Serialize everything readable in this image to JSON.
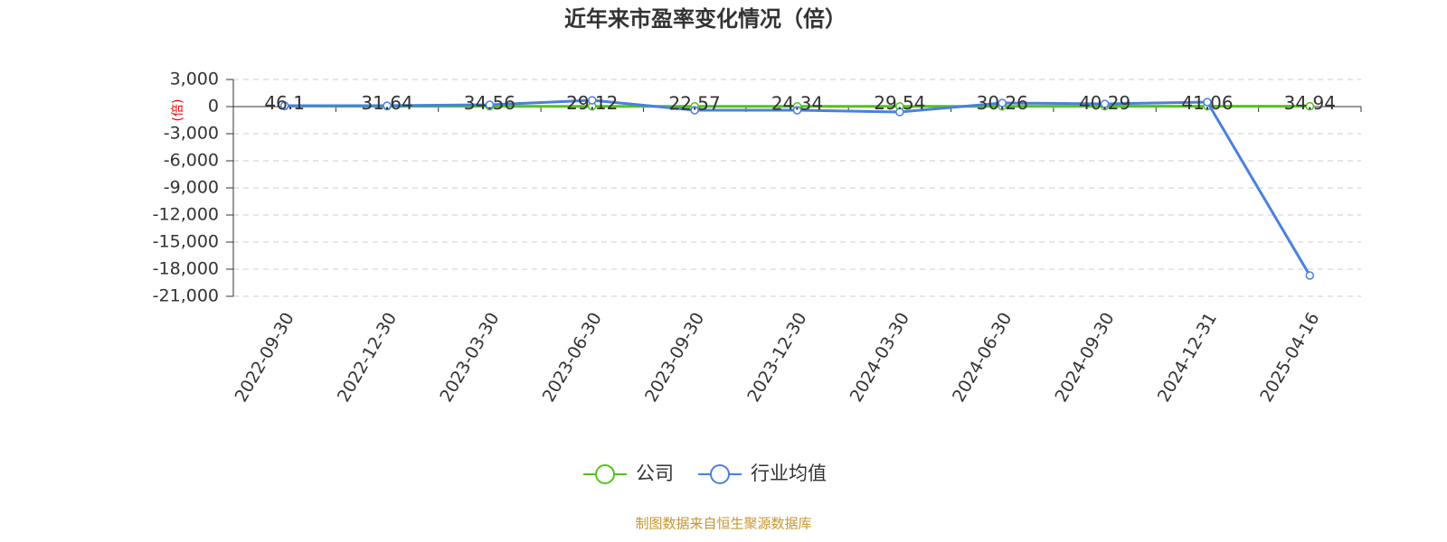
{
  "chart_data": {
    "type": "line",
    "title": "近年来市盈率变化情况（倍）",
    "y_label": "(倍)",
    "categories": [
      "2022-09-30",
      "2022-12-30",
      "2023-03-30",
      "2023-06-30",
      "2023-09-30",
      "2023-12-30",
      "2024-03-30",
      "2024-06-30",
      "2024-09-30",
      "2024-12-31",
      "2025-04-16"
    ],
    "series": [
      {
        "name": "公司",
        "color": "#52c41a",
        "values": [
          46.1,
          31.64,
          34.56,
          29.12,
          22.57,
          24.34,
          29.54,
          30.26,
          40.29,
          41.06,
          34.94
        ]
      },
      {
        "name": "行业均值",
        "color": "#4a80e0",
        "values": [
          100,
          100,
          200,
          700,
          -400,
          -400,
          -600,
          400,
          300,
          500,
          -18700
        ]
      }
    ],
    "ylim": [
      -21000,
      3000
    ],
    "yticks": [
      {
        "value": 3000,
        "label": "3,000"
      },
      0,
      {
        "value": -3000,
        "label": "-3,000"
      },
      {
        "value": -6000,
        "label": "-6,000"
      },
      {
        "value": -9000,
        "label": "-9,000"
      },
      {
        "value": -12000,
        "label": "-12,000"
      },
      {
        "value": -15000,
        "label": "-15,000"
      },
      {
        "value": -18000,
        "label": "-18,000"
      },
      {
        "value": -21000,
        "label": "-21,000"
      }
    ],
    "grid": true,
    "legend": "bottom",
    "source": "制图数据来自恒生聚源数据库"
  }
}
